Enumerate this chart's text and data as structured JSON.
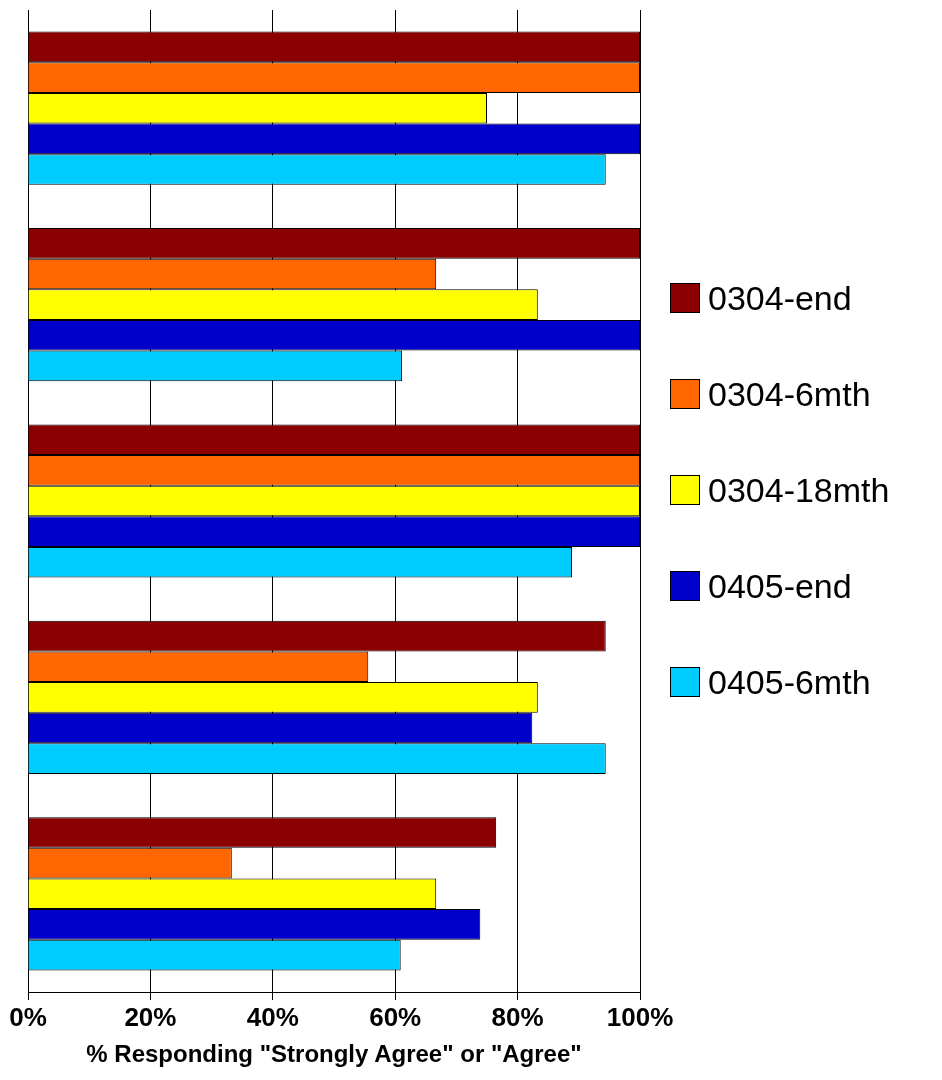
{
  "chart_data": {
    "type": "bar",
    "orientation": "horizontal",
    "xlabel": "% Responding \"Strongly Agree\" or \"Agree\"",
    "categories": [
      null,
      null,
      null,
      null,
      null
    ],
    "series": [
      {
        "name": "0304-end",
        "color": "#8b0000",
        "values": [
          100,
          100,
          100,
          94.4,
          76.5
        ]
      },
      {
        "name": "0304-6mth",
        "color": "#ff6600",
        "values": [
          100,
          66.7,
          100,
          55.6,
          33.3
        ]
      },
      {
        "name": "0304-18mth",
        "color": "#ffff00",
        "values": [
          75,
          83.3,
          100,
          83.3,
          66.7
        ]
      },
      {
        "name": "0405-end",
        "color": "#0000cc",
        "values": [
          100,
          100,
          100,
          82.4,
          73.9
        ]
      },
      {
        "name": "0405-6mth",
        "color": "#00ccff",
        "values": [
          94.4,
          61.1,
          88.9,
          94.4,
          60.9
        ]
      }
    ],
    "xlim": [
      0,
      100
    ],
    "xticks": [
      {
        "value": 0,
        "label": "0%"
      },
      {
        "value": 20,
        "label": "20%"
      },
      {
        "value": 40,
        "label": "40%"
      },
      {
        "value": 60,
        "label": "60%"
      },
      {
        "value": 80,
        "label": "80%"
      },
      {
        "value": 100,
        "label": "100%"
      }
    ],
    "grid": "x",
    "legend": "right",
    "tick_labels": "x"
  }
}
